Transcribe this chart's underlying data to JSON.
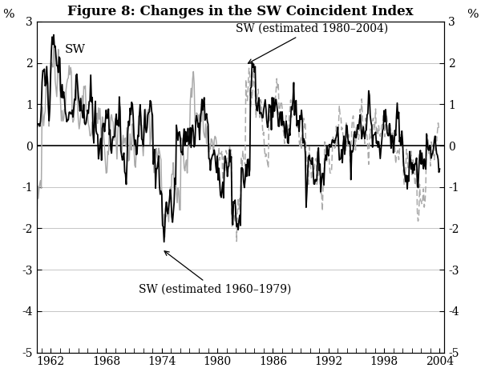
{
  "title": "Figure 8: Changes in the SW Coincident Index",
  "ylabel_left": "%",
  "ylabel_right": "%",
  "xlim": [
    1960.5,
    2004.5
  ],
  "ylim": [
    -5,
    3
  ],
  "yticks": [
    -5,
    -4,
    -3,
    -2,
    -1,
    0,
    1,
    2,
    3
  ],
  "xticks": [
    1962,
    1968,
    1974,
    1980,
    1986,
    1992,
    1998,
    2004
  ],
  "sw_label": "SW",
  "sw_est_60_79_label": "SW (estimated 1960–1979)",
  "sw_est_80_04_label": "SW (estimated 1980–2004)",
  "sw_color": "#000000",
  "sw_est_60_79_color": "#aaaaaa",
  "sw_est_80_04_color": "#aaaaaa",
  "background_color": "#ffffff",
  "grid_color": "#bbbbbb",
  "title_fontsize": 12,
  "axis_fontsize": 10,
  "tick_fontsize": 10
}
